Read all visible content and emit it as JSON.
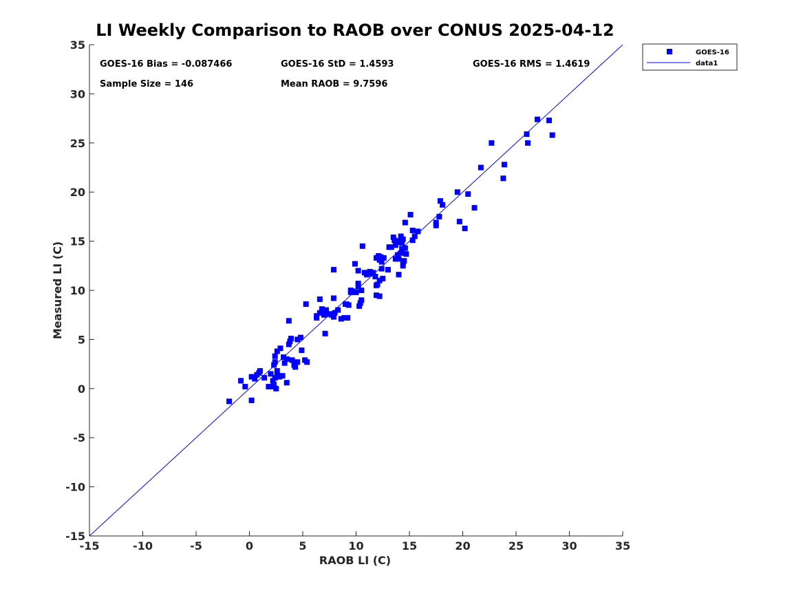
{
  "chart_data": {
    "type": "scatter",
    "title": "LI Weekly Comparison to RAOB over CONUS 2025-04-12",
    "xlabel": "RAOB LI (C)",
    "ylabel": "Measured LI (C)",
    "xlim": [
      -15,
      35
    ],
    "ylim": [
      -15,
      35
    ],
    "xticks": [
      -15,
      -10,
      -5,
      0,
      5,
      10,
      15,
      20,
      25,
      30,
      35
    ],
    "yticks": [
      -15,
      -10,
      -5,
      0,
      5,
      10,
      15,
      20,
      25,
      30,
      35
    ],
    "grid": false,
    "legend_position": "outside-top-right",
    "stats": {
      "bias": "GOES-16 Bias = -0.087466",
      "std": "GOES-16 StD = 1.4593",
      "rms": "GOES-16 RMS = 1.4619",
      "sample_size": "Sample Size = 146",
      "mean_raob": "Mean RAOB = 9.7596"
    },
    "series": [
      {
        "name": "GOES-16",
        "kind": "scatter",
        "marker": "square",
        "color": "#0000ff",
        "points": [
          [
            -1.9,
            -1.3
          ],
          [
            -0.8,
            0.8
          ],
          [
            -0.4,
            0.2
          ],
          [
            0.2,
            -1.2
          ],
          [
            0.2,
            1.2
          ],
          [
            0.5,
            1.0
          ],
          [
            0.7,
            1.4
          ],
          [
            0.9,
            1.6
          ],
          [
            1.0,
            1.8
          ],
          [
            1.4,
            1.1
          ],
          [
            1.8,
            0.2
          ],
          [
            2.0,
            1.5
          ],
          [
            2.1,
            0.2
          ],
          [
            2.2,
            0.8
          ],
          [
            2.3,
            0.4
          ],
          [
            2.4,
            1.1
          ],
          [
            2.5,
            0.0
          ],
          [
            2.6,
            1.3
          ],
          [
            2.3,
            2.4
          ],
          [
            2.4,
            2.7
          ],
          [
            2.6,
            1.8
          ],
          [
            2.8,
            1.2
          ],
          [
            3.1,
            1.3
          ],
          [
            2.4,
            3.3
          ],
          [
            2.6,
            3.8
          ],
          [
            2.9,
            4.1
          ],
          [
            3.2,
            3.2
          ],
          [
            3.3,
            2.6
          ],
          [
            3.5,
            0.6
          ],
          [
            3.5,
            3.0
          ],
          [
            3.7,
            4.5
          ],
          [
            3.8,
            4.8
          ],
          [
            3.9,
            5.1
          ],
          [
            3.7,
            6.9
          ],
          [
            4.0,
            2.9
          ],
          [
            4.2,
            2.5
          ],
          [
            4.3,
            2.2
          ],
          [
            4.5,
            5.0
          ],
          [
            4.5,
            2.7
          ],
          [
            4.8,
            5.2
          ],
          [
            4.9,
            3.9
          ],
          [
            5.2,
            2.9
          ],
          [
            5.4,
            2.7
          ],
          [
            5.3,
            8.6
          ],
          [
            6.3,
            7.2
          ],
          [
            6.3,
            7.4
          ],
          [
            6.6,
            7.7
          ],
          [
            6.6,
            9.1
          ],
          [
            6.8,
            8.1
          ],
          [
            7.0,
            7.5
          ],
          [
            7.1,
            5.6
          ],
          [
            7.2,
            8.0
          ],
          [
            7.5,
            7.6
          ],
          [
            7.7,
            7.5
          ],
          [
            7.9,
            7.3
          ],
          [
            7.9,
            12.1
          ],
          [
            7.9,
            9.2
          ],
          [
            8.0,
            7.7
          ],
          [
            8.3,
            8.0
          ],
          [
            8.6,
            7.1
          ],
          [
            8.9,
            7.2
          ],
          [
            9.0,
            8.6
          ],
          [
            9.1,
            8.6
          ],
          [
            9.2,
            7.2
          ],
          [
            9.3,
            8.5
          ],
          [
            9.5,
            10.0
          ],
          [
            9.7,
            9.9
          ],
          [
            9.9,
            12.7
          ],
          [
            10.0,
            9.8
          ],
          [
            10.2,
            10.4
          ],
          [
            10.2,
            10.7
          ],
          [
            10.3,
            8.4
          ],
          [
            10.4,
            8.7
          ],
          [
            10.5,
            10.0
          ],
          [
            10.5,
            9.0
          ],
          [
            10.2,
            12.0
          ],
          [
            10.6,
            14.5
          ],
          [
            10.8,
            11.8
          ],
          [
            11.0,
            11.6
          ],
          [
            11.3,
            11.9
          ],
          [
            11.6,
            11.8
          ],
          [
            11.8,
            11.4
          ],
          [
            11.9,
            10.5
          ],
          [
            11.9,
            9.5
          ],
          [
            12.0,
            10.6
          ],
          [
            11.9,
            13.3
          ],
          [
            12.2,
            13.1
          ],
          [
            12.2,
            11.0
          ],
          [
            12.4,
            12.2
          ],
          [
            12.2,
            9.4
          ],
          [
            12.3,
            13.4
          ],
          [
            12.4,
            12.9
          ],
          [
            12.6,
            13.3
          ],
          [
            12.5,
            11.2
          ],
          [
            13.0,
            12.1
          ],
          [
            13.1,
            14.4
          ],
          [
            13.3,
            14.4
          ],
          [
            13.5,
            15.4
          ],
          [
            13.6,
            15.1
          ],
          [
            13.7,
            14.6
          ],
          [
            13.7,
            13.2
          ],
          [
            13.8,
            14.9
          ],
          [
            13.9,
            13.6
          ],
          [
            14.0,
            13.2
          ],
          [
            14.0,
            11.6
          ],
          [
            14.1,
            15.0
          ],
          [
            14.2,
            13.8
          ],
          [
            14.2,
            15.5
          ],
          [
            14.3,
            14.2
          ],
          [
            14.3,
            14.8
          ],
          [
            14.4,
            15.2
          ],
          [
            14.4,
            12.8
          ],
          [
            14.4,
            12.5
          ],
          [
            14.5,
            13.0
          ],
          [
            14.6,
            16.9
          ],
          [
            14.6,
            14.3
          ],
          [
            14.7,
            13.7
          ],
          [
            15.1,
            17.7
          ],
          [
            15.3,
            15.1
          ],
          [
            15.3,
            16.1
          ],
          [
            15.5,
            15.5
          ],
          [
            15.8,
            16.0
          ],
          [
            17.5,
            16.6
          ],
          [
            17.5,
            16.9
          ],
          [
            17.8,
            17.5
          ],
          [
            17.9,
            19.1
          ],
          [
            18.1,
            18.7
          ],
          [
            19.5,
            20.0
          ],
          [
            19.7,
            17.0
          ],
          [
            20.2,
            16.3
          ],
          [
            20.5,
            19.8
          ],
          [
            21.1,
            18.4
          ],
          [
            21.7,
            22.5
          ],
          [
            22.7,
            25.0
          ],
          [
            23.8,
            21.4
          ],
          [
            23.9,
            22.8
          ],
          [
            26.0,
            25.9
          ],
          [
            26.1,
            25.0
          ],
          [
            27.0,
            27.4
          ],
          [
            28.1,
            27.3
          ],
          [
            28.4,
            25.8
          ],
          [
            12.1,
            13.5
          ],
          [
            11.4,
            11.7
          ],
          [
            9.5,
            9.8
          ],
          [
            6.9,
            7.9
          ],
          [
            4.2,
            2.4
          ]
        ]
      },
      {
        "name": "data1",
        "kind": "line",
        "color": "#0000ff",
        "x": [
          -15,
          35
        ],
        "y": [
          -15,
          35
        ]
      }
    ]
  }
}
